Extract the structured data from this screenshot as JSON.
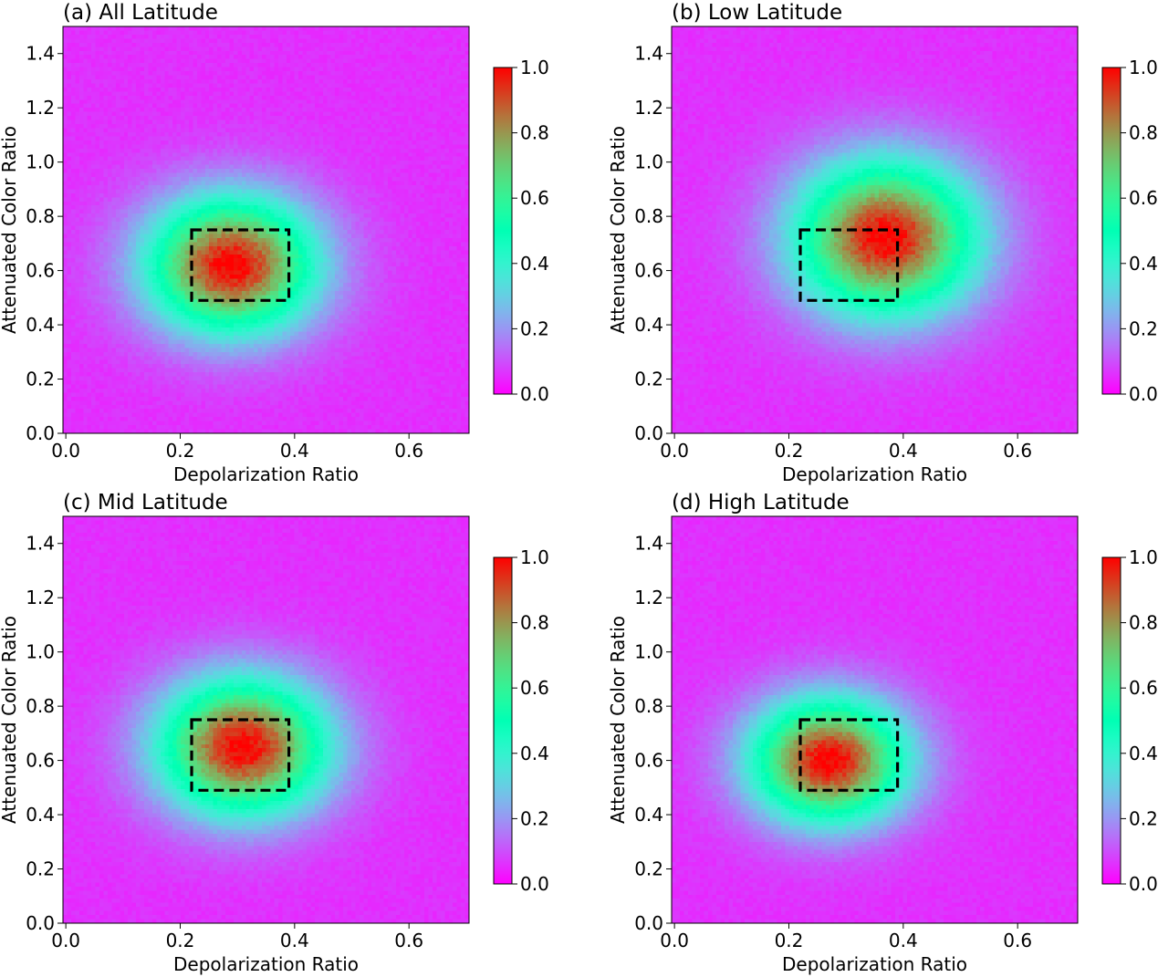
{
  "chart_data": [
    {
      "type": "heatmap",
      "title": "(a) All Latitude",
      "xlabel": "Depolarization Ratio",
      "ylabel": "Attenuated Color Ratio",
      "xlim": [
        -0.005,
        0.705
      ],
      "ylim": [
        0,
        1.5
      ],
      "xticks": [
        0.0,
        0.2,
        0.4,
        0.6
      ],
      "xtick_labels": [
        "0.0",
        "0.2",
        "0.4",
        "0.6"
      ],
      "yticks": [
        0.0,
        0.2,
        0.4,
        0.6,
        0.8,
        1.0,
        1.2,
        1.4
      ],
      "ytick_labels": [
        "0.0",
        "0.2",
        "0.4",
        "0.6",
        "0.8",
        "1.0",
        "1.2",
        "1.4"
      ],
      "colorbar": {
        "colormap": "rainbow",
        "range": [
          0.0,
          1.0
        ],
        "ticks": [
          "0.0",
          "0.2",
          "0.4",
          "0.6",
          "0.8",
          "1.0"
        ]
      },
      "grid": false,
      "density_peak": {
        "x": 0.29,
        "y": 0.62
      },
      "density_spread": {
        "x": 0.13,
        "y": 0.22
      },
      "highlight_box": {
        "x": [
          0.22,
          0.39
        ],
        "y": [
          0.49,
          0.75
        ],
        "style": "dashed",
        "color": "#000000"
      }
    },
    {
      "type": "heatmap",
      "title": "(b) Low Latitude",
      "xlabel": "Depolarization Ratio",
      "ylabel": "Attenuated Color Ratio",
      "xlim": [
        -0.005,
        0.705
      ],
      "ylim": [
        0,
        1.5
      ],
      "xticks": [
        0.0,
        0.2,
        0.4,
        0.6
      ],
      "xtick_labels": [
        "0.0",
        "0.2",
        "0.4",
        "0.6"
      ],
      "yticks": [
        0.0,
        0.2,
        0.4,
        0.6,
        0.8,
        1.0,
        1.2,
        1.4
      ],
      "ytick_labels": [
        "0.0",
        "0.2",
        "0.4",
        "0.6",
        "0.8",
        "1.0",
        "1.2",
        "1.4"
      ],
      "colorbar": {
        "colormap": "rainbow",
        "range": [
          0.0,
          1.0
        ],
        "ticks": [
          "0.0",
          "0.2",
          "0.4",
          "0.6",
          "0.8",
          "1.0"
        ]
      },
      "grid": false,
      "density_peak": {
        "x": 0.37,
        "y": 0.72
      },
      "density_spread": {
        "x": 0.14,
        "y": 0.25
      },
      "highlight_box": {
        "x": [
          0.22,
          0.39
        ],
        "y": [
          0.49,
          0.75
        ],
        "style": "dashed",
        "color": "#000000"
      }
    },
    {
      "type": "heatmap",
      "title": "(c) Mid Latitude",
      "xlabel": "Depolarization Ratio",
      "ylabel": "Attenuated Color Ratio",
      "xlim": [
        -0.005,
        0.705
      ],
      "ylim": [
        0,
        1.5
      ],
      "xticks": [
        0.0,
        0.2,
        0.4,
        0.6
      ],
      "xtick_labels": [
        "0.0",
        "0.2",
        "0.4",
        "0.6"
      ],
      "yticks": [
        0.0,
        0.2,
        0.4,
        0.6,
        0.8,
        1.0,
        1.2,
        1.4
      ],
      "ytick_labels": [
        "0.0",
        "0.2",
        "0.4",
        "0.6",
        "0.8",
        "1.0",
        "1.2",
        "1.4"
      ],
      "colorbar": {
        "colormap": "rainbow",
        "range": [
          0.0,
          1.0
        ],
        "ticks": [
          "0.0",
          "0.2",
          "0.4",
          "0.6",
          "0.8",
          "1.0"
        ]
      },
      "grid": false,
      "density_peak": {
        "x": 0.31,
        "y": 0.65
      },
      "density_spread": {
        "x": 0.13,
        "y": 0.22
      },
      "highlight_box": {
        "x": [
          0.22,
          0.39
        ],
        "y": [
          0.49,
          0.75
        ],
        "style": "dashed",
        "color": "#000000"
      }
    },
    {
      "type": "heatmap",
      "title": "(d) High Latitude",
      "xlabel": "Depolarization Ratio",
      "ylabel": "Attenuated Color Ratio",
      "xlim": [
        -0.005,
        0.705
      ],
      "ylim": [
        0,
        1.5
      ],
      "xticks": [
        0.0,
        0.2,
        0.4,
        0.6
      ],
      "xtick_labels": [
        "0.0",
        "0.2",
        "0.4",
        "0.6"
      ],
      "yticks": [
        0.0,
        0.2,
        0.4,
        0.6,
        0.8,
        1.0,
        1.2,
        1.4
      ],
      "ytick_labels": [
        "0.0",
        "0.2",
        "0.4",
        "0.6",
        "0.8",
        "1.0",
        "1.2",
        "1.4"
      ],
      "colorbar": {
        "colormap": "rainbow",
        "range": [
          0.0,
          1.0
        ],
        "ticks": [
          "0.0",
          "0.2",
          "0.4",
          "0.6",
          "0.8",
          "1.0"
        ]
      },
      "grid": false,
      "density_peak": {
        "x": 0.27,
        "y": 0.6
      },
      "density_spread": {
        "x": 0.12,
        "y": 0.2
      },
      "highlight_box": {
        "x": [
          0.22,
          0.39
        ],
        "y": [
          0.49,
          0.75
        ],
        "style": "dashed",
        "color": "#000000"
      }
    }
  ]
}
